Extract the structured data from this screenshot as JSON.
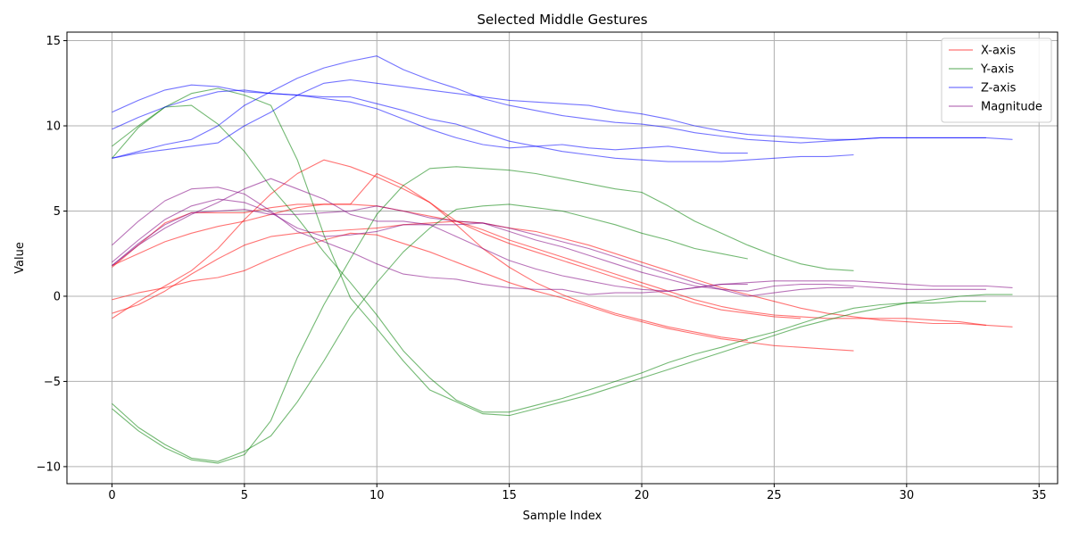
{
  "chart_data": {
    "type": "line",
    "title": "Selected Middle Gestures",
    "xlabel": "Sample Index",
    "ylabel": "Value",
    "xlim": [
      -1.7,
      35.7
    ],
    "ylim": [
      -11,
      15.5
    ],
    "xticks": [
      0,
      5,
      10,
      15,
      20,
      25,
      30,
      35
    ],
    "yticks": [
      -10,
      -5,
      0,
      5,
      10,
      15
    ],
    "grid": true,
    "legend_position": "top-right",
    "legend": [
      {
        "label": "X-axis",
        "color": "#ff0000"
      },
      {
        "label": "Y-axis",
        "color": "#008000"
      },
      {
        "label": "Z-axis",
        "color": "#0000ff"
      },
      {
        "label": "Magnitude",
        "color": "#800080"
      }
    ],
    "series": [
      {
        "group": "X-axis",
        "color": "#ff0000",
        "values": [
          -0.2,
          0.2,
          0.5,
          0.9,
          1.1,
          1.5,
          2.2,
          2.8,
          3.3,
          3.7,
          3.6,
          3.1,
          2.6,
          2.0,
          1.4,
          0.8,
          0.3,
          -0.1,
          -0.6,
          -1.1,
          -1.5,
          -1.9,
          -2.2,
          -2.5,
          -2.7,
          -2.9,
          -3.0,
          -3.1,
          -3.2
        ]
      },
      {
        "group": "X-axis",
        "color": "#ff0000",
        "values": [
          -1.3,
          -0.3,
          0.6,
          1.5,
          2.8,
          4.5,
          6.0,
          7.2,
          8.0,
          7.6,
          7.0,
          6.3,
          5.5,
          4.2,
          2.8,
          1.7,
          0.8,
          0.1,
          -0.5,
          -1.0,
          -1.4,
          -1.8,
          -2.1,
          -2.4,
          -2.6
        ]
      },
      {
        "group": "X-axis",
        "color": "#ff0000",
        "values": [
          -1.0,
          -0.5,
          0.3,
          1.3,
          2.2,
          3.0,
          3.5,
          3.7,
          3.8,
          3.9,
          4.0,
          4.2,
          4.3,
          4.4,
          4.3,
          4.0,
          3.8,
          3.4,
          3.0,
          2.5,
          2.0,
          1.5,
          1.0,
          0.5,
          0.1,
          -0.3,
          -0.7,
          -1.0,
          -1.2,
          -1.4,
          -1.5,
          -1.6,
          -1.6,
          -1.7,
          -1.8
        ]
      },
      {
        "group": "X-axis",
        "color": "#ff0000",
        "values": [
          1.8,
          2.5,
          3.2,
          3.7,
          4.1,
          4.4,
          4.8,
          5.2,
          5.4,
          5.4,
          5.3,
          5.0,
          4.7,
          4.4,
          3.9,
          3.3,
          2.8,
          2.3,
          1.8,
          1.3,
          0.8,
          0.3,
          -0.2,
          -0.6,
          -0.9,
          -1.1,
          -1.2,
          -1.3,
          -1.3,
          -1.3,
          -1.3,
          -1.4,
          -1.5,
          -1.7
        ]
      },
      {
        "group": "X-axis",
        "color": "#ff0000",
        "values": [
          1.7,
          3.0,
          4.3,
          4.9,
          4.9,
          4.9,
          5.2,
          5.4,
          5.4,
          5.4,
          7.2,
          6.5,
          5.5,
          4.4,
          3.7,
          3.1,
          2.6,
          2.1,
          1.6,
          1.1,
          0.6,
          0.1,
          -0.4,
          -0.8,
          -1.0,
          -1.2,
          -1.3
        ]
      },
      {
        "group": "Y-axis",
        "color": "#008000",
        "values": [
          -6.6,
          -7.9,
          -8.9,
          -9.6,
          -9.8,
          -9.3,
          -7.3,
          -3.6,
          -0.5,
          2.2,
          4.8,
          6.5,
          7.5,
          7.6,
          7.5,
          7.4,
          7.2,
          6.9,
          6.6,
          6.3,
          6.1,
          5.3,
          4.4,
          3.7,
          3.0,
          2.4,
          1.9,
          1.6,
          1.5
        ]
      },
      {
        "group": "Y-axis",
        "color": "#008000",
        "values": [
          -6.3,
          -7.7,
          -8.7,
          -9.5,
          -9.7,
          -9.1,
          -8.2,
          -6.2,
          -3.8,
          -1.2,
          0.8,
          2.6,
          4.0,
          5.1,
          5.3,
          5.4,
          5.2,
          5.0,
          4.6,
          4.2,
          3.7,
          3.3,
          2.8,
          2.5,
          2.2
        ]
      },
      {
        "group": "Y-axis",
        "color": "#008000",
        "values": [
          8.8,
          10.0,
          11.1,
          11.9,
          12.2,
          11.8,
          11.2,
          8.0,
          3.6,
          -0.1,
          -1.9,
          -3.8,
          -5.5,
          -6.2,
          -6.9,
          -7.0,
          -6.6,
          -6.2,
          -5.8,
          -5.3,
          -4.8,
          -4.3,
          -3.8,
          -3.3,
          -2.8,
          -2.3,
          -1.8,
          -1.4,
          -1.0,
          -0.7,
          -0.4,
          -0.2,
          0.0,
          0.1,
          0.1
        ]
      },
      {
        "group": "Y-axis",
        "color": "#008000",
        "values": [
          8.1,
          9.9,
          11.1,
          11.2,
          10.1,
          8.5,
          6.4,
          4.6,
          2.6,
          0.8,
          -1.1,
          -3.2,
          -4.8,
          -6.1,
          -6.8,
          -6.8,
          -6.4,
          -6.0,
          -5.5,
          -5.0,
          -4.5,
          -3.9,
          -3.4,
          -3.0,
          -2.5,
          -2.1,
          -1.6,
          -1.1,
          -0.7,
          -0.5,
          -0.4,
          -0.4,
          -0.3,
          -0.3
        ]
      },
      {
        "group": "Z-axis",
        "color": "#0000ff",
        "values": [
          10.8,
          11.5,
          12.1,
          12.4,
          12.3,
          12.0,
          11.9,
          11.8,
          11.6,
          11.4,
          11.0,
          10.4,
          9.8,
          9.3,
          8.9,
          8.7,
          8.8,
          8.9,
          8.7,
          8.6,
          8.7,
          8.8,
          8.6,
          8.4,
          8.4
        ]
      },
      {
        "group": "Z-axis",
        "color": "#0000ff",
        "values": [
          9.8,
          10.5,
          11.1,
          11.6,
          12.0,
          12.1,
          11.9,
          11.8,
          11.7,
          11.7,
          11.3,
          10.9,
          10.4,
          10.1,
          9.6,
          9.1,
          8.8,
          8.5,
          8.3,
          8.1,
          8.0,
          7.9,
          7.9,
          7.9,
          8.0,
          8.1,
          8.2,
          8.2,
          8.3
        ]
      },
      {
        "group": "Z-axis",
        "color": "#0000ff",
        "values": [
          8.1,
          8.4,
          8.6,
          8.8,
          9.0,
          10.0,
          10.8,
          11.8,
          12.5,
          12.7,
          12.5,
          12.3,
          12.1,
          11.9,
          11.7,
          11.5,
          11.4,
          11.3,
          11.2,
          10.9,
          10.7,
          10.4,
          10.0,
          9.7,
          9.5,
          9.4,
          9.3,
          9.2,
          9.2,
          9.3,
          9.3,
          9.3,
          9.3,
          9.3
        ]
      },
      {
        "group": "Z-axis",
        "color": "#0000ff",
        "values": [
          8.1,
          8.5,
          8.9,
          9.2,
          10.0,
          11.2,
          12.0,
          12.8,
          13.4,
          13.8,
          14.1,
          13.3,
          12.7,
          12.2,
          11.6,
          11.2,
          10.9,
          10.6,
          10.4,
          10.2,
          10.1,
          9.9,
          9.6,
          9.4,
          9.2,
          9.1,
          9.0,
          9.1,
          9.2,
          9.3,
          9.3,
          9.3,
          9.3,
          9.3,
          9.2
        ]
      },
      {
        "group": "Magnitude",
        "color": "#800080",
        "values": [
          3.0,
          4.4,
          5.6,
          6.3,
          6.4,
          6.0,
          5.0,
          3.8,
          3.2,
          2.6,
          1.9,
          1.3,
          1.1,
          1.0,
          0.7,
          0.5,
          0.4,
          0.4,
          0.1,
          0.2,
          0.2,
          0.3,
          0.5,
          0.7,
          0.7
        ]
      },
      {
        "group": "Magnitude",
        "color": "#800080",
        "values": [
          2.0,
          3.3,
          4.5,
          5.3,
          5.7,
          5.5,
          4.9,
          4.0,
          3.5,
          3.6,
          3.8,
          4.2,
          4.2,
          4.2,
          4.3,
          4.0,
          3.6,
          3.2,
          2.8,
          2.3,
          1.8,
          1.3,
          0.8,
          0.4,
          0.0,
          0.2,
          0.4,
          0.5,
          0.5
        ]
      },
      {
        "group": "Magnitude",
        "color": "#800080",
        "values": [
          1.8,
          3.1,
          4.2,
          4.9,
          5.0,
          5.1,
          4.8,
          4.8,
          4.9,
          5.0,
          5.3,
          5.0,
          4.6,
          4.4,
          4.3,
          3.8,
          3.3,
          2.9,
          2.4,
          1.9,
          1.4,
          1.0,
          0.6,
          0.4,
          0.3,
          0.6,
          0.7,
          0.7,
          0.6,
          0.5,
          0.4,
          0.4,
          0.4,
          0.4
        ]
      },
      {
        "group": "Magnitude",
        "color": "#800080",
        "values": [
          1.8,
          3.0,
          4.0,
          4.8,
          5.5,
          6.3,
          6.9,
          6.3,
          5.7,
          4.8,
          4.4,
          4.4,
          4.2,
          3.5,
          2.8,
          2.1,
          1.6,
          1.2,
          0.9,
          0.6,
          0.4,
          0.3,
          0.5,
          0.7,
          0.8,
          0.9,
          0.9,
          0.9,
          0.9,
          0.8,
          0.7,
          0.6,
          0.6,
          0.6,
          0.5
        ]
      }
    ]
  }
}
